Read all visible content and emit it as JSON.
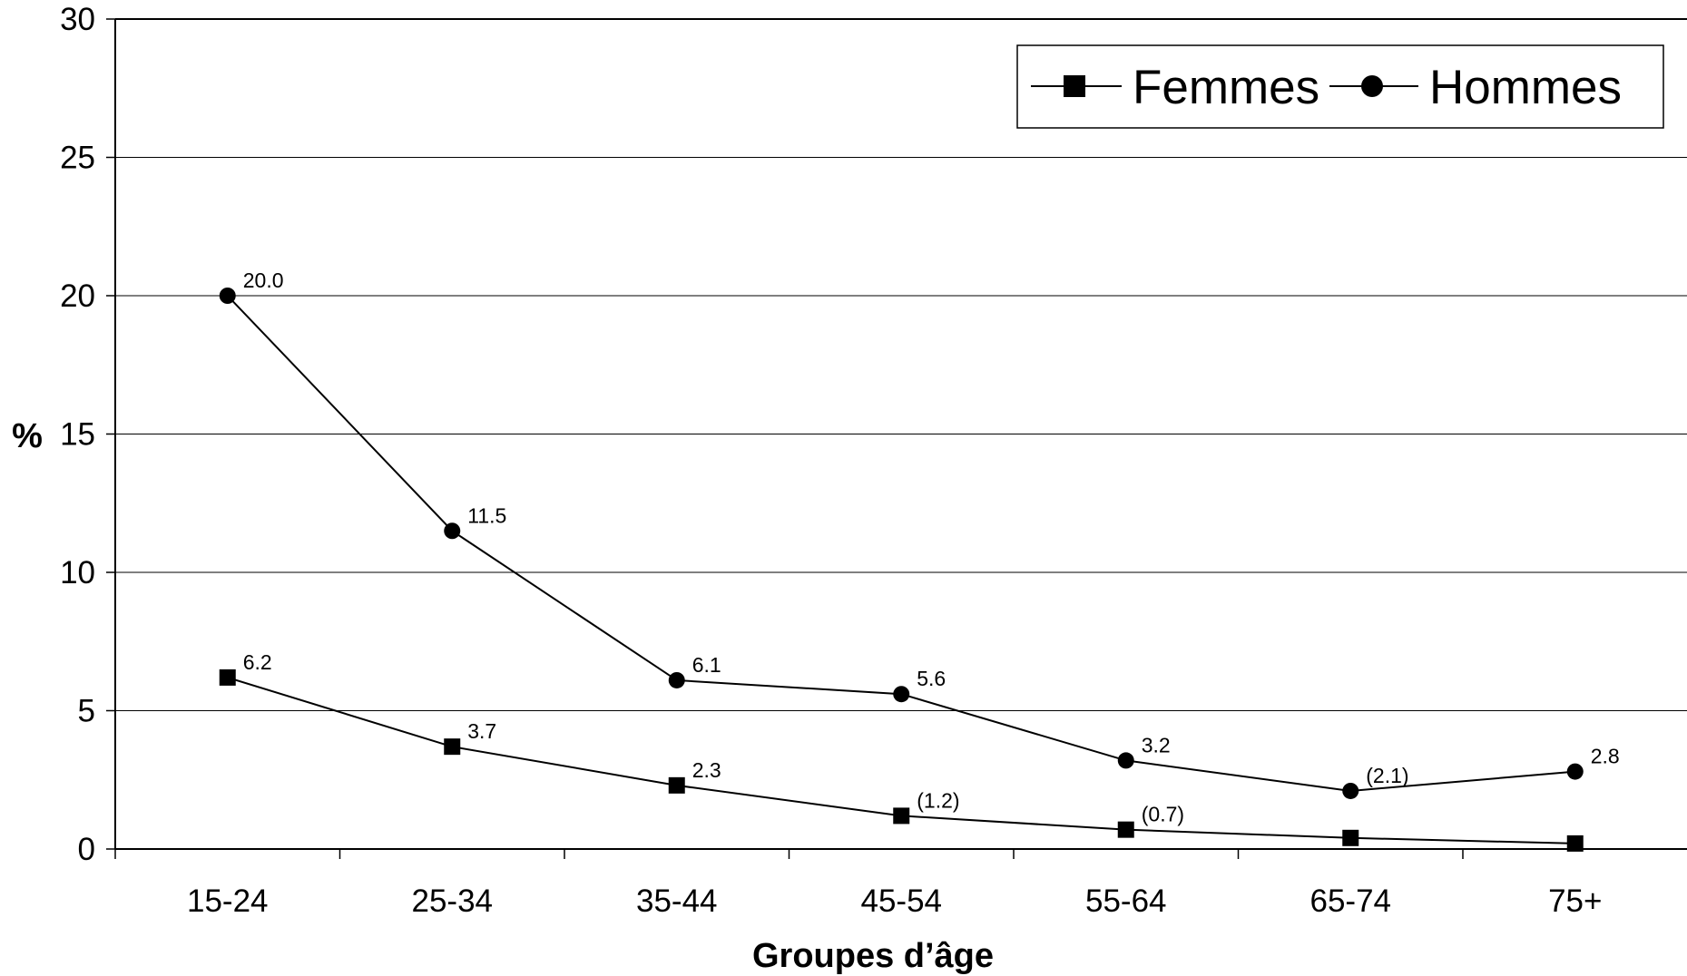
{
  "chart_data": {
    "type": "line",
    "categories": [
      "15-24",
      "25-34",
      "35-44",
      "45-54",
      "55-64",
      "65-74",
      "75+"
    ],
    "series": [
      {
        "name": "Femmes",
        "marker": "square",
        "values": [
          6.2,
          3.7,
          2.3,
          1.2,
          0.7,
          0.4,
          0.2
        ],
        "labels": [
          "6.2",
          "3.7",
          "2.3",
          "(1.2)",
          "(0.7)",
          "",
          ""
        ]
      },
      {
        "name": "Hommes",
        "marker": "circle",
        "values": [
          20.0,
          11.5,
          6.1,
          5.6,
          3.2,
          2.1,
          2.8
        ],
        "labels": [
          "20.0",
          "11.5",
          "6.1",
          "5.6",
          "3.2",
          "(2.1)",
          "2.8"
        ]
      }
    ],
    "xlabel": "Groupes d’âge",
    "ylabel": "%",
    "ylim": [
      0,
      30
    ],
    "yticks": [
      "0",
      "5",
      "10",
      "15",
      "20",
      "25",
      "30"
    ],
    "grid": true,
    "legend": "top-right",
    "line_color": "#000000"
  }
}
